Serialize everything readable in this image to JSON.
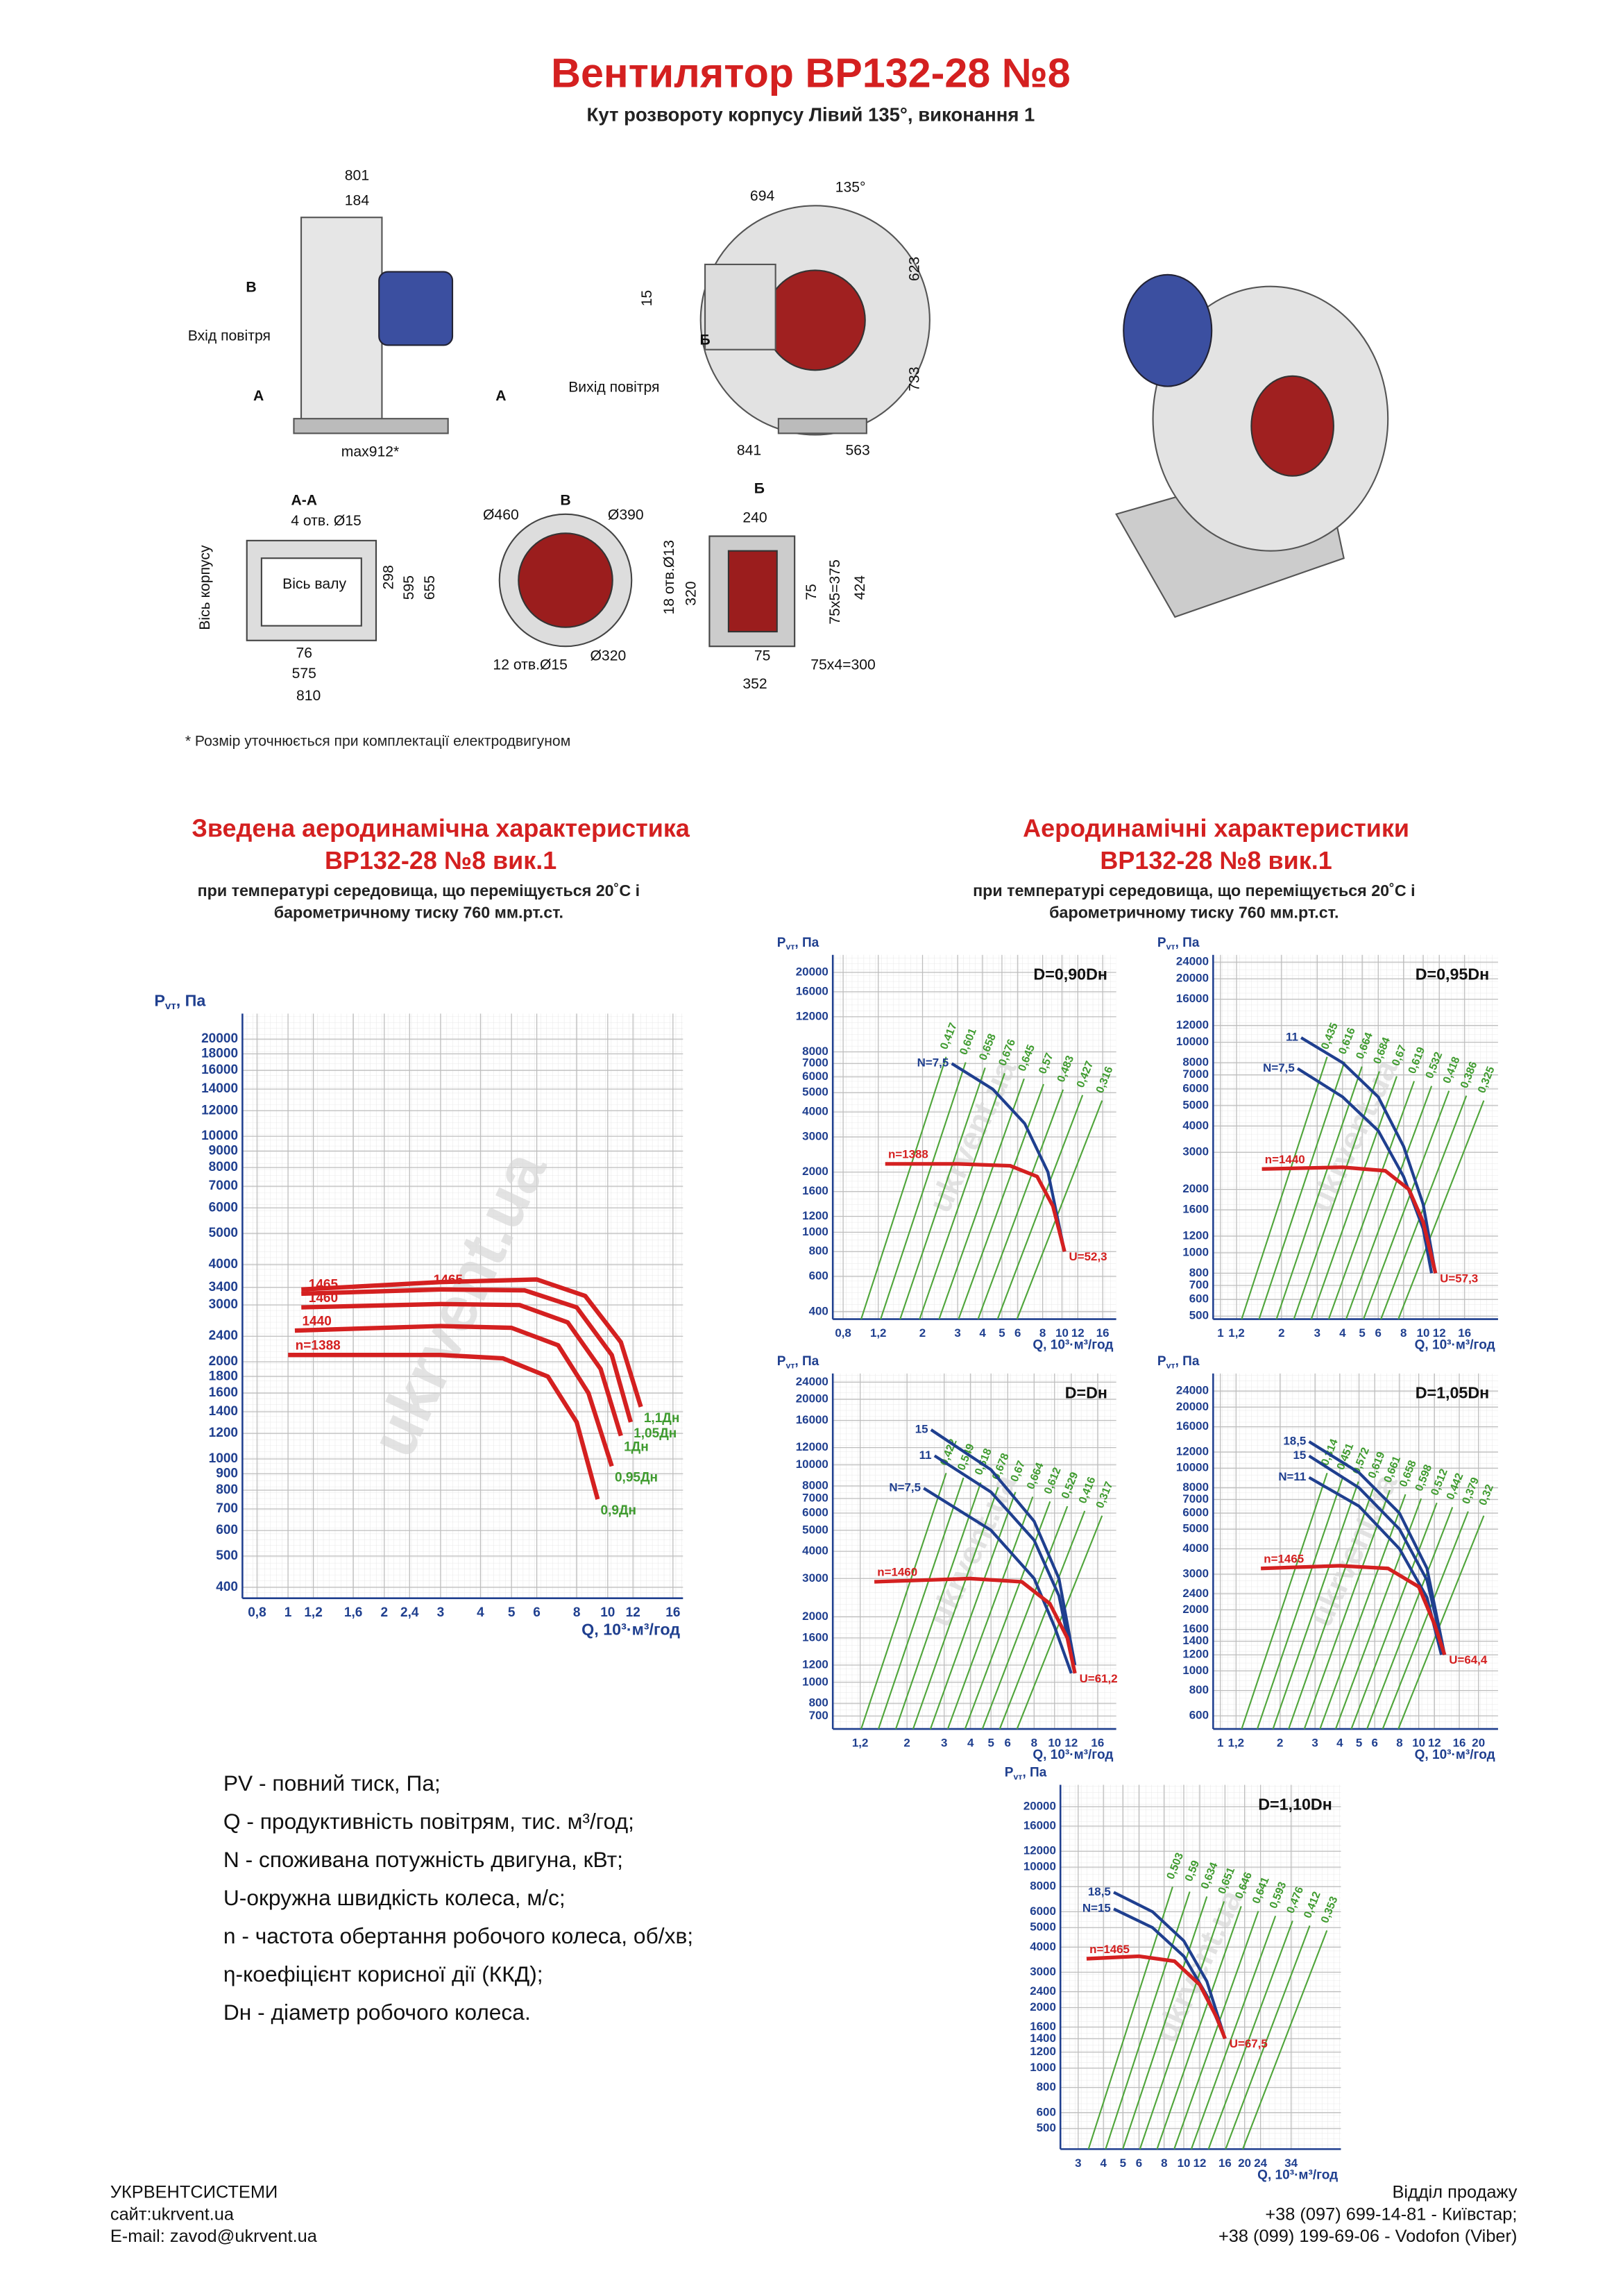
{
  "header": {
    "title": "Вентилятор ВР132-28 №8",
    "subtitle": "Кут розвороту корпусу Лівий 135°, виконання 1"
  },
  "drawings": {
    "labels": [
      "801",
      "184",
      "В",
      "Вхід повітря",
      "А",
      "А",
      "max912*",
      "694",
      "135°",
      "623",
      "15",
      "Б",
      "Вихід повітря",
      "733",
      "841",
      "563",
      "А-А",
      "4 отв. Ø15",
      "Вісь корпусу",
      "Вісь валу",
      "298",
      "595",
      "655",
      "76",
      "575",
      "810",
      "В",
      "Ø460",
      "Ø390",
      "Ø320",
      "12 отв.Ø15",
      "Б",
      "240",
      "18 отв.Ø13",
      "320",
      "75",
      "75x5=375",
      "424",
      "75",
      "352",
      "75x4=300"
    ],
    "note": "* Розмір уточнюється при комплектації електродвигуном"
  },
  "watermark": "ukrvent.ua",
  "summary": {
    "title": [
      "Зведена аеродинамічна характеристика",
      "ВР132-28 №8 вик.1",
      "при температурі середовища, що переміщується 20˚С і",
      "барометричному тиску 760 мм.рт.ст."
    ],
    "chart_data": {
      "type": "line",
      "y_label": "P",
      "y_label_sub": "vт",
      "y_label_unit": ", Па",
      "x_label": "Q, 10³·м³/год",
      "log_x": true,
      "log_y": true,
      "grid": true,
      "xlim": [
        0.72,
        17.2
      ],
      "ylim": [
        370,
        24000
      ],
      "xticks": [
        {
          "value": 0.8,
          "label": "0,8"
        },
        1,
        {
          "value": 1.2,
          "label": "1,2"
        },
        {
          "value": 1.6,
          "label": "1,6"
        },
        2,
        {
          "value": 2.4,
          "label": "2,4"
        },
        3,
        4,
        5,
        6,
        8,
        10,
        12,
        16
      ],
      "yticks": [
        400,
        500,
        600,
        700,
        800,
        900,
        1000,
        1200,
        1400,
        1600,
        1800,
        2000,
        2400,
        3000,
        3400,
        4000,
        5000,
        6000,
        7000,
        8000,
        9000,
        10000,
        12000,
        14000,
        16000,
        18000,
        20000
      ],
      "series": [
        {
          "name": "0,9Дн",
          "speed_label": "n=1388",
          "color": "#d42020",
          "x": [
            1,
            3,
            4.7,
            6.5,
            8,
            9.3
          ],
          "y": [
            2100,
            2100,
            2050,
            1800,
            1300,
            750
          ]
        },
        {
          "name": "0,95Дн",
          "speed_label": "1440",
          "color": "#d42020",
          "x": [
            1.05,
            3,
            5,
            7,
            8.7,
            10.3
          ],
          "y": [
            2500,
            2580,
            2550,
            2250,
            1600,
            950
          ]
        },
        {
          "name": "1Дн",
          "speed_label": "1460",
          "color": "#d42020",
          "x": [
            1.1,
            3,
            5.3,
            7.5,
            9.5,
            11
          ],
          "y": [
            2950,
            3020,
            3000,
            2650,
            1900,
            1180
          ]
        },
        {
          "name": "1,05Дн",
          "speed_label": "1465",
          "color": "#d42020",
          "x": [
            1.1,
            3,
            5.5,
            8,
            10.3,
            11.8
          ],
          "y": [
            3250,
            3350,
            3330,
            2950,
            2100,
            1300
          ]
        },
        {
          "name": "1,1Дн",
          "speed_label": "1465",
          "color": "#d42020",
          "x": [
            1.1,
            3,
            6,
            8.5,
            11,
            12.7
          ],
          "y": [
            3350,
            3530,
            3600,
            3200,
            2300,
            1450
          ]
        }
      ]
    }
  },
  "characteristics": {
    "title": [
      "Аеродинамічні характеристики",
      "ВР132-28 №8 вик.1",
      "при температурі середовища, що переміщується 20˚С і",
      "барометричному тиску 760 мм.рт.ст."
    ],
    "charts": [
      {
        "type": "line",
        "title": "D=0,90Dн",
        "y_label": "P",
        "y_label_sub": "vт",
        "y_label_unit": ", Па",
        "x_label": "Q, 10³·м³/год",
        "log_x": true,
        "log_y": true,
        "xlim": [
          0.71,
          18.7
        ],
        "ylim": [
          367,
          24500
        ],
        "xticks": [
          {
            "value": 0.8,
            "label": "0,8"
          },
          {
            "value": 1.2,
            "label": "1,2"
          },
          2,
          3,
          4,
          5,
          6,
          8,
          10,
          12,
          16
        ],
        "yticks": [
          400,
          600,
          800,
          1000,
          1200,
          1600,
          2000,
          3000,
          4000,
          5000,
          6000,
          7000,
          8000,
          12000,
          16000,
          20000
        ],
        "n_curve": {
          "label": "n=1388",
          "color": "#d42020",
          "x": [
            1.3,
            3,
            5.5,
            7.5,
            9,
            10.3
          ],
          "y": [
            2200,
            2200,
            2150,
            1900,
            1350,
            800
          ]
        },
        "power_curves": [
          {
            "label": "N=7,5",
            "color": "#1f3f8f",
            "x": [
              2.8,
              4.5,
              6.5,
              8.5,
              10.3
            ],
            "y": [
              7000,
              5200,
              3500,
              2000,
              800
            ]
          }
        ],
        "u_label": "U=52,3",
        "efficiency_labels": [
          "0,417",
          "0,601",
          "0,658",
          "0,676",
          "0,645",
          "0,57",
          "0,483",
          "0,427",
          "0,316"
        ]
      },
      {
        "type": "line",
        "title": "D=0,95Dн",
        "y_label": "P",
        "y_label_sub": "vт",
        "y_label_unit": ", Па",
        "x_label": "Q, 10³·м³/год",
        "log_x": true,
        "log_y": true,
        "xlim": [
          0.92,
          23.4
        ],
        "ylim": [
          484,
          26000
        ],
        "xticks": [
          1,
          {
            "value": 1.2,
            "label": "1,2"
          },
          2,
          3,
          4,
          5,
          6,
          8,
          10,
          12,
          16
        ],
        "yticks": [
          500,
          600,
          700,
          800,
          1000,
          1200,
          1600,
          2000,
          3000,
          4000,
          5000,
          6000,
          7000,
          8000,
          10000,
          12000,
          16000,
          20000,
          24000
        ],
        "n_curve": {
          "label": "n=1440",
          "color": "#d42020",
          "x": [
            1.6,
            4,
            6.5,
            8.5,
            10,
            11.5
          ],
          "y": [
            2500,
            2550,
            2450,
            2000,
            1400,
            800
          ]
        },
        "power_curves": [
          {
            "label": "11",
            "color": "#1f3f8f",
            "x": [
              2.5,
              4,
              6,
              8,
              10,
              11.5
            ],
            "y": [
              10500,
              8000,
              5500,
              3200,
              1700,
              800
            ]
          },
          {
            "label": "N=7,5",
            "color": "#1f3f8f",
            "x": [
              2.4,
              4,
              6,
              8,
              10,
              11
            ],
            "y": [
              7500,
              5500,
              3800,
              2300,
              1300,
              800
            ]
          }
        ],
        "u_label": "U=57,3",
        "efficiency_labels": [
          "0,435",
          "0,616",
          "0,664",
          "0,684",
          "0,67",
          "0,619",
          "0,532",
          "0,418",
          "0,386",
          "0,325"
        ]
      },
      {
        "type": "line",
        "title": "D=Dн",
        "y_label": "P",
        "y_label_sub": "vт",
        "y_label_unit": ", Па",
        "x_label": "Q, 10³·м³/год",
        "log_x": true,
        "log_y": true,
        "xlim": [
          0.89,
          19.6
        ],
        "ylim": [
          610,
          26300
        ],
        "xticks": [
          {
            "value": 1.2,
            "label": "1,2"
          },
          2,
          3,
          4,
          5,
          6,
          8,
          10,
          12,
          16
        ],
        "yticks": [
          700,
          800,
          1000,
          1200,
          1600,
          2000,
          3000,
          4000,
          5000,
          6000,
          7000,
          8000,
          10000,
          12000,
          16000,
          20000,
          24000
        ],
        "n_curve": {
          "label": "n=1460",
          "color": "#d42020",
          "x": [
            1.4,
            4,
            7,
            9.5,
            11.5,
            12.5
          ],
          "y": [
            2900,
            3000,
            2900,
            2300,
            1600,
            1100
          ]
        },
        "power_curves": [
          {
            "label": "15",
            "color": "#1f3f8f",
            "x": [
              2.6,
              5,
              8,
              10.5,
              12.5
            ],
            "y": [
              14500,
              9500,
              5500,
              3000,
              1200
            ]
          },
          {
            "label": "11",
            "color": "#1f3f8f",
            "x": [
              2.7,
              5,
              8,
              10.5,
              12.5
            ],
            "y": [
              11000,
              7500,
              4500,
              2500,
              1100
            ]
          },
          {
            "label": "N=7,5",
            "color": "#1f3f8f",
            "x": [
              2.4,
              5,
              8,
              10,
              12
            ],
            "y": [
              7800,
              5000,
              3000,
              1800,
              1100
            ]
          }
        ],
        "u_label": "U=61,2",
        "efficiency_labels": [
          "0,422",
          "0,549",
          "0,618",
          "0,678",
          "0,67",
          "0,664",
          "0,612",
          "0,529",
          "0,416",
          "0,317"
        ]
      },
      {
        "type": "line",
        "title": "D=1,05Dн",
        "y_label": "P",
        "y_label_sub": "vт",
        "y_label_unit": ", Па",
        "x_label": "Q, 10³·м³/год",
        "log_x": true,
        "log_y": true,
        "xlim": [
          0.92,
          25.1
        ],
        "ylim": [
          517,
          29300
        ],
        "xticks": [
          1,
          {
            "value": 1.2,
            "label": "1,2"
          },
          2,
          3,
          4,
          5,
          6,
          8,
          10,
          12,
          16,
          20
        ],
        "yticks": [
          600,
          800,
          1000,
          1200,
          1400,
          1600,
          2000,
          2400,
          3000,
          4000,
          5000,
          6000,
          7000,
          8000,
          10000,
          12000,
          16000,
          20000,
          24000
        ],
        "n_curve": {
          "label": "n=1465",
          "color": "#d42020",
          "x": [
            1.6,
            4,
            7,
            10,
            12,
            13.5
          ],
          "y": [
            3200,
            3300,
            3200,
            2600,
            1700,
            1200
          ]
        },
        "power_curves": [
          {
            "label": "18,5",
            "color": "#1f3f8f",
            "x": [
              2.8,
              5,
              8,
              11,
              13.5
            ],
            "y": [
              13500,
              9500,
              6000,
              3200,
              1200
            ]
          },
          {
            "label": "15",
            "color": "#1f3f8f",
            "x": [
              2.8,
              5,
              8,
              11,
              13.5
            ],
            "y": [
              11500,
              8000,
              5000,
              2800,
              1200
            ]
          },
          {
            "label": "N=11",
            "color": "#1f3f8f",
            "x": [
              2.8,
              5,
              8,
              11,
              13
            ],
            "y": [
              9000,
              6500,
              4000,
              2300,
              1200
            ]
          }
        ],
        "u_label": "U=64,4",
        "efficiency_labels": [
          "0,314",
          "0,451",
          "0,572",
          "0,619",
          "0,661",
          "0,658",
          "0,598",
          "0,512",
          "0,442",
          "0,379",
          "0,32"
        ]
      },
      {
        "type": "line",
        "title": "D=1,10Dн",
        "y_label": "P",
        "y_label_sub": "vт",
        "y_label_unit": ", Па",
        "x_label": "Q, 10³·м³/год",
        "log_x": true,
        "log_y": true,
        "xlim": [
          2.45,
          60
        ],
        "ylim": [
          395,
          25700
        ],
        "xticks": [
          3,
          4,
          5,
          6,
          8,
          10,
          12,
          16,
          20,
          24,
          34
        ],
        "yticks": [
          500,
          600,
          800,
          1000,
          1200,
          1400,
          1600,
          2000,
          2400,
          3000,
          4000,
          5000,
          6000,
          8000,
          10000,
          12000,
          16000,
          20000
        ],
        "n_curve": {
          "label": "n=1465",
          "color": "#d42020",
          "x": [
            3.3,
            6,
            9,
            12,
            14.5,
            16
          ],
          "y": [
            3500,
            3600,
            3400,
            2600,
            1800,
            1400
          ]
        },
        "power_curves": [
          {
            "label": "18,5",
            "color": "#1f3f8f",
            "x": [
              4.5,
              7,
              10,
              13,
              16
            ],
            "y": [
              7500,
              6000,
              4300,
              2700,
              1400
            ]
          },
          {
            "label": "N=15",
            "color": "#1f3f8f",
            "x": [
              4.5,
              7,
              10,
              13,
              16
            ],
            "y": [
              6200,
              5000,
              3600,
              2300,
              1400
            ]
          }
        ],
        "u_label": "U=67,5",
        "efficiency_labels": [
          "0,503",
          "0,59",
          "0,634",
          "0,651",
          "0,646",
          "0,641",
          "0,593",
          "0,476",
          "0,412",
          "0,353"
        ]
      }
    ]
  },
  "legend": [
    "PV - повний тиск, Па;",
    "Q - продуктивність повітрям, тис. м³/год;",
    "N - споживана потужність двигуна, кВт;",
    "U-окружна швидкість колеса, м/с;",
    "n - частота обертання робочого колеса, об/хв;",
    "η-коефіцієнт корисної дії (ККД);",
    "Dн - діаметр робочого колеса."
  ],
  "footer": {
    "left": [
      "УКРВЕНТСИСТЕМИ",
      "сайт:ukrvent.ua",
      "E-mail: zavod@ukrvent.ua"
    ],
    "right": [
      "Відділ продажу",
      "+38 (097) 699-14-81 - Київстар;",
      "+38 (099) 199-69-06 - Vodofon (Viber)"
    ]
  }
}
